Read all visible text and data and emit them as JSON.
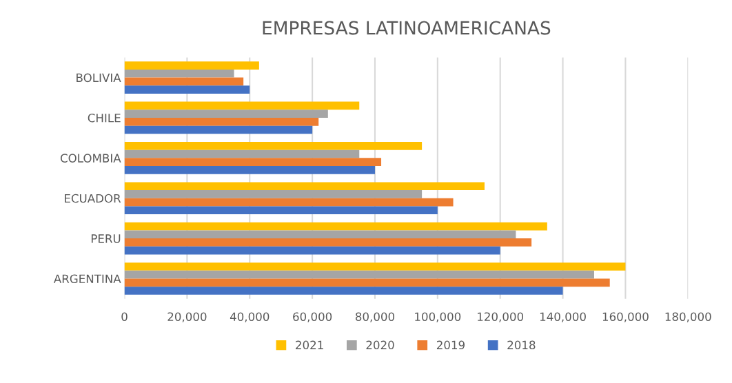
{
  "chart_data": {
    "type": "bar",
    "orientation": "horizontal",
    "title": "EMPRESAS LATINOAMERICANAS",
    "categories": [
      "BOLIVIA",
      "CHILE",
      "COLOMBIA",
      "ECUADOR",
      "PERU",
      "ARGENTINA"
    ],
    "series": [
      {
        "name": "2021",
        "color": "#ffc000",
        "values": [
          43000,
          75000,
          95000,
          115000,
          135000,
          160000
        ]
      },
      {
        "name": "2020",
        "color": "#a5a5a5",
        "values": [
          35000,
          65000,
          75000,
          95000,
          125000,
          150000
        ]
      },
      {
        "name": "2019",
        "color": "#ed7d31",
        "values": [
          38000,
          62000,
          82000,
          105000,
          130000,
          155000
        ]
      },
      {
        "name": "2018",
        "color": "#4472c4",
        "values": [
          40000,
          60000,
          80000,
          100000,
          120000,
          140000
        ]
      }
    ],
    "xlim": [
      0,
      180000
    ],
    "xticks": [
      0,
      {
        "value": 20000,
        "label": "20,000"
      },
      {
        "value": 40000,
        "label": "40,000"
      },
      {
        "value": 60000,
        "label": "60,000"
      },
      {
        "value": 80000,
        "label": "80,000"
      },
      {
        "value": 100000,
        "label": "100,000"
      },
      {
        "value": 120000,
        "label": "120,000"
      },
      {
        "value": 140000,
        "label": "140,000"
      },
      {
        "value": 160000,
        "label": "160,000"
      },
      {
        "value": 180000,
        "label": "180,000"
      }
    ],
    "grid": "x",
    "legend": "bottom"
  }
}
